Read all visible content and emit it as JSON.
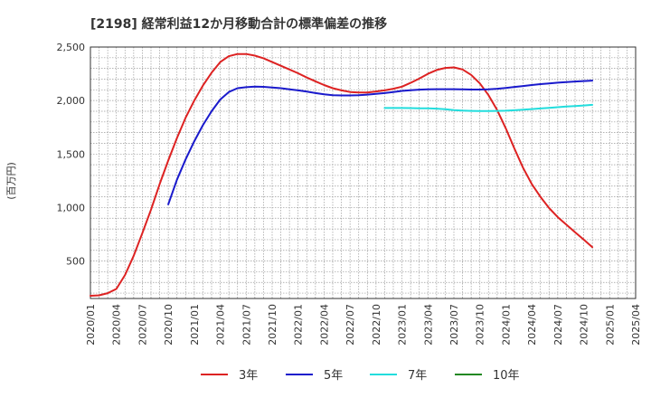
{
  "chart_data": {
    "type": "line",
    "title": "[2198]  経常利益12か月移動合計の標準偏差の推移",
    "ylabel": "(百万円)",
    "xlabel": "",
    "ylim": [
      150,
      2500
    ],
    "yticks": [
      500,
      1000,
      1500,
      2000,
      2500
    ],
    "ytick_labels": [
      "500",
      "1,000",
      "1,500",
      "2,000",
      "2,500"
    ],
    "x_range": [
      "2020/01",
      "2025/04"
    ],
    "xticks": [
      "2020/01",
      "2020/04",
      "2020/07",
      "2020/10",
      "2021/01",
      "2021/04",
      "2021/07",
      "2021/10",
      "2022/01",
      "2022/04",
      "2022/07",
      "2022/10",
      "2023/01",
      "2023/04",
      "2023/07",
      "2023/10",
      "2024/01",
      "2024/04",
      "2024/07",
      "2024/10",
      "2025/01",
      "2025/04"
    ],
    "grid": true,
    "series": [
      {
        "name": "3年",
        "color": "#dd2222",
        "points": [
          [
            "2020/01",
            175
          ],
          [
            "2020/02",
            180
          ],
          [
            "2020/03",
            200
          ],
          [
            "2020/04",
            240
          ],
          [
            "2020/05",
            370
          ],
          [
            "2020/06",
            550
          ],
          [
            "2020/07",
            760
          ],
          [
            "2020/08",
            980
          ],
          [
            "2020/09",
            1220
          ],
          [
            "2020/10",
            1440
          ],
          [
            "2020/11",
            1650
          ],
          [
            "2020/12",
            1840
          ],
          [
            "2021/01",
            2000
          ],
          [
            "2021/02",
            2140
          ],
          [
            "2021/03",
            2260
          ],
          [
            "2021/04",
            2360
          ],
          [
            "2021/05",
            2415
          ],
          [
            "2021/06",
            2435
          ],
          [
            "2021/07",
            2435
          ],
          [
            "2021/08",
            2420
          ],
          [
            "2021/09",
            2395
          ],
          [
            "2021/10",
            2360
          ],
          [
            "2021/11",
            2325
          ],
          [
            "2021/12",
            2290
          ],
          [
            "2022/01",
            2255
          ],
          [
            "2022/02",
            2215
          ],
          [
            "2022/03",
            2180
          ],
          [
            "2022/04",
            2145
          ],
          [
            "2022/05",
            2115
          ],
          [
            "2022/06",
            2095
          ],
          [
            "2022/07",
            2080
          ],
          [
            "2022/08",
            2075
          ],
          [
            "2022/09",
            2075
          ],
          [
            "2022/10",
            2085
          ],
          [
            "2022/11",
            2095
          ],
          [
            "2022/12",
            2110
          ],
          [
            "2023/01",
            2130
          ],
          [
            "2023/02",
            2165
          ],
          [
            "2023/03",
            2205
          ],
          [
            "2023/04",
            2250
          ],
          [
            "2023/05",
            2285
          ],
          [
            "2023/06",
            2305
          ],
          [
            "2023/07",
            2310
          ],
          [
            "2023/08",
            2290
          ],
          [
            "2023/09",
            2240
          ],
          [
            "2023/10",
            2160
          ],
          [
            "2023/11",
            2050
          ],
          [
            "2023/12",
            1910
          ],
          [
            "2024/01",
            1740
          ],
          [
            "2024/02",
            1550
          ],
          [
            "2024/03",
            1370
          ],
          [
            "2024/04",
            1220
          ],
          [
            "2024/05",
            1100
          ],
          [
            "2024/06",
            995
          ],
          [
            "2024/07",
            910
          ],
          [
            "2024/08",
            840
          ],
          [
            "2024/09",
            770
          ],
          [
            "2024/10",
            700
          ],
          [
            "2024/11",
            630
          ]
        ]
      },
      {
        "name": "5年",
        "color": "#1a1acc",
        "points": [
          [
            "2020/10",
            1030
          ],
          [
            "2020/11",
            1260
          ],
          [
            "2020/12",
            1450
          ],
          [
            "2021/01",
            1620
          ],
          [
            "2021/02",
            1770
          ],
          [
            "2021/03",
            1900
          ],
          [
            "2021/04",
            2010
          ],
          [
            "2021/05",
            2080
          ],
          [
            "2021/06",
            2115
          ],
          [
            "2021/07",
            2125
          ],
          [
            "2021/08",
            2130
          ],
          [
            "2021/09",
            2128
          ],
          [
            "2021/10",
            2122
          ],
          [
            "2021/11",
            2115
          ],
          [
            "2021/12",
            2105
          ],
          [
            "2022/01",
            2095
          ],
          [
            "2022/02",
            2083
          ],
          [
            "2022/03",
            2070
          ],
          [
            "2022/04",
            2058
          ],
          [
            "2022/05",
            2050
          ],
          [
            "2022/06",
            2048
          ],
          [
            "2022/07",
            2048
          ],
          [
            "2022/08",
            2050
          ],
          [
            "2022/09",
            2055
          ],
          [
            "2022/10",
            2062
          ],
          [
            "2022/11",
            2070
          ],
          [
            "2022/12",
            2080
          ],
          [
            "2023/01",
            2090
          ],
          [
            "2023/02",
            2097
          ],
          [
            "2023/03",
            2102
          ],
          [
            "2023/04",
            2105
          ],
          [
            "2023/05",
            2106
          ],
          [
            "2023/06",
            2106
          ],
          [
            "2023/07",
            2106
          ],
          [
            "2023/08",
            2104
          ],
          [
            "2023/09",
            2103
          ],
          [
            "2023/10",
            2103
          ],
          [
            "2023/11",
            2105
          ],
          [
            "2023/12",
            2110
          ],
          [
            "2024/01",
            2118
          ],
          [
            "2024/02",
            2127
          ],
          [
            "2024/03",
            2136
          ],
          [
            "2024/04",
            2145
          ],
          [
            "2024/05",
            2153
          ],
          [
            "2024/06",
            2160
          ],
          [
            "2024/07",
            2167
          ],
          [
            "2024/08",
            2173
          ],
          [
            "2024/09",
            2178
          ],
          [
            "2024/10",
            2182
          ],
          [
            "2024/11",
            2186
          ]
        ]
      },
      {
        "name": "7年",
        "color": "#22dddd",
        "points": [
          [
            "2022/11",
            1930
          ],
          [
            "2022/12",
            1930
          ],
          [
            "2023/01",
            1930
          ],
          [
            "2023/02",
            1929
          ],
          [
            "2023/03",
            1928
          ],
          [
            "2023/04",
            1927
          ],
          [
            "2023/05",
            1924
          ],
          [
            "2023/06",
            1918
          ],
          [
            "2023/07",
            1911
          ],
          [
            "2023/08",
            1906
          ],
          [
            "2023/09",
            1903
          ],
          [
            "2023/10",
            1902
          ],
          [
            "2023/11",
            1902
          ],
          [
            "2023/12",
            1903
          ],
          [
            "2024/01",
            1905
          ],
          [
            "2024/02",
            1909
          ],
          [
            "2024/03",
            1914
          ],
          [
            "2024/04",
            1920
          ],
          [
            "2024/05",
            1926
          ],
          [
            "2024/06",
            1932
          ],
          [
            "2024/07",
            1938
          ],
          [
            "2024/08",
            1944
          ],
          [
            "2024/09",
            1949
          ],
          [
            "2024/10",
            1954
          ],
          [
            "2024/11",
            1960
          ]
        ]
      },
      {
        "name": "10年",
        "color": "#228822",
        "points": []
      }
    ]
  }
}
